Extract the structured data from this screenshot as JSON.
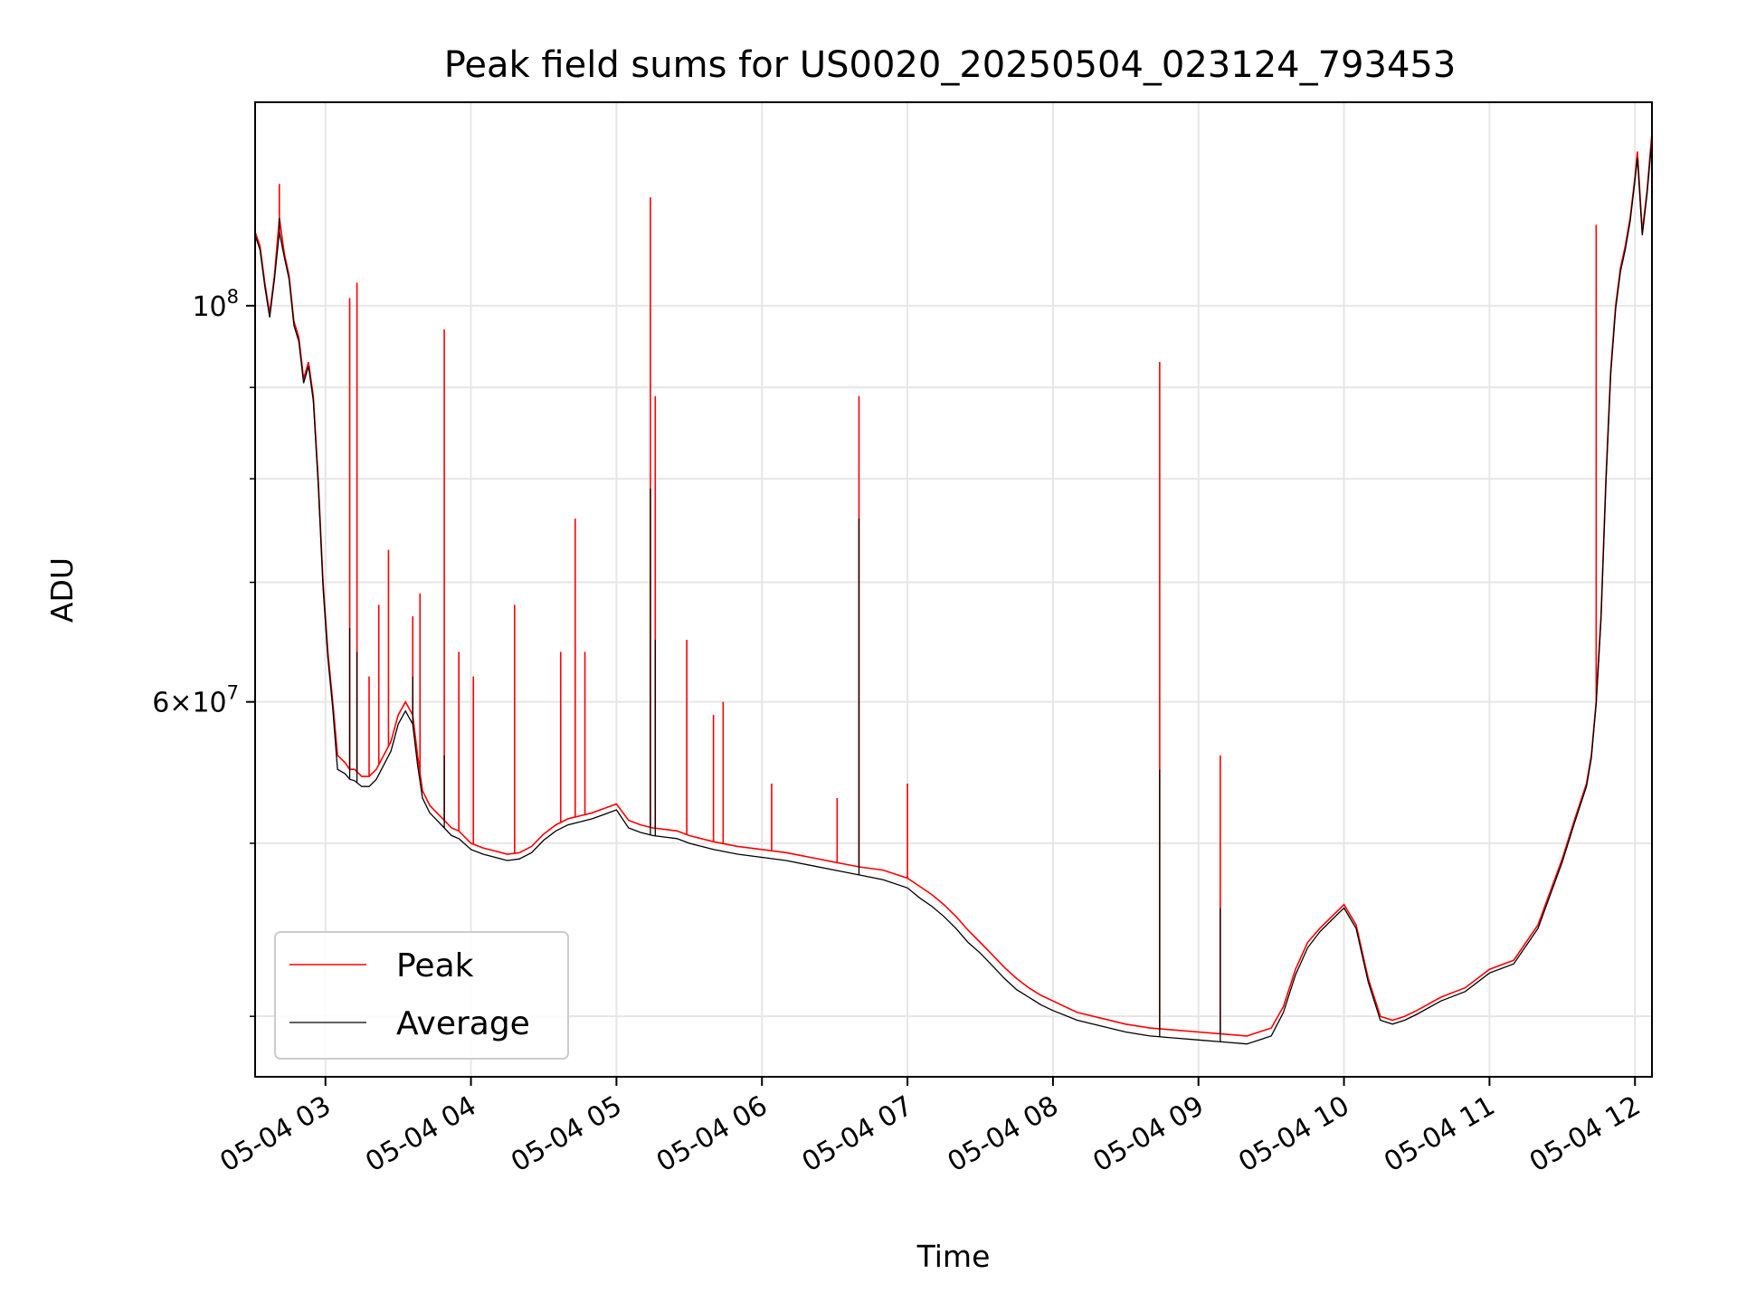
{
  "chart_data": {
    "type": "line",
    "title": "Peak field sums for US0020_20250504_023124_793453",
    "xlabel": "Time",
    "ylabel": "ADU",
    "y_scale": "log",
    "grid": true,
    "legend_placement": "lower-left",
    "xlim": [
      "2025-05-04 02:31",
      "2025-05-04 12:07"
    ],
    "ylim": [
      37000000,
      130000000
    ],
    "x_ticks": [
      "05-04 03",
      "05-04 04",
      "05-04 05",
      "05-04 06",
      "05-04 07",
      "05-04 08",
      "05-04 09",
      "05-04 10",
      "05-04 11",
      "05-04 12"
    ],
    "y_ticks": [
      "10^8",
      "6×10^7"
    ],
    "series": [
      {
        "name": "Peak",
        "color": "#ff0000",
        "x": [
          "02:31",
          "02:33",
          "02:35",
          "02:37",
          "02:39",
          "02:41",
          "02:43",
          "02:45",
          "02:47",
          "02:49",
          "02:51",
          "02:53",
          "02:55",
          "02:57",
          "02:59",
          "03:01",
          "03:03",
          "03:05",
          "03:08",
          "03:10",
          "03:12",
          "03:15",
          "03:18",
          "03:21",
          "03:24",
          "03:27",
          "03:30",
          "03:33",
          "03:36",
          "03:38",
          "03:40",
          "03:43",
          "03:46",
          "03:49",
          "03:52",
          "03:55",
          "04:00",
          "04:05",
          "04:10",
          "04:15",
          "04:20",
          "04:25",
          "04:30",
          "04:35",
          "04:40",
          "04:45",
          "04:50",
          "04:55",
          "05:00",
          "05:05",
          "05:10",
          "05:15",
          "05:20",
          "05:25",
          "05:30",
          "05:40",
          "05:50",
          "06:00",
          "06:10",
          "06:20",
          "06:30",
          "06:40",
          "06:50",
          "07:00",
          "07:05",
          "07:10",
          "07:15",
          "07:20",
          "07:25",
          "07:30",
          "07:35",
          "07:40",
          "07:45",
          "07:50",
          "07:55",
          "08:00",
          "08:10",
          "08:20",
          "08:30",
          "08:40",
          "08:50",
          "09:00",
          "09:10",
          "09:20",
          "09:30",
          "09:35",
          "09:40",
          "09:45",
          "09:50",
          "09:55",
          "10:00",
          "10:05",
          "10:10",
          "10:15",
          "10:20",
          "10:25",
          "10:30",
          "10:40",
          "10:50",
          "11:00",
          "11:10",
          "11:20",
          "11:30",
          "11:35",
          "11:40",
          "11:42",
          "11:44",
          "11:46",
          "11:48",
          "11:50",
          "11:52",
          "11:54",
          "11:56",
          "11:58",
          "12:00",
          "12:01",
          "12:03",
          "12:05",
          "12:07"
        ],
        "y": [
          110000000,
          108000000,
          103000000,
          99000000,
          104000000,
          112000000,
          107000000,
          104000000,
          98000000,
          96000000,
          91000000,
          93000000,
          89000000,
          80000000,
          70000000,
          64000000,
          60000000,
          56000000,
          55500000,
          55000000,
          55000000,
          54500000,
          54500000,
          55000000,
          56000000,
          57000000,
          59000000,
          60000000,
          59000000,
          56000000,
          53500000,
          52500000,
          52000000,
          51500000,
          51000000,
          50800000,
          50000000,
          49700000,
          49500000,
          49300000,
          49400000,
          49800000,
          50600000,
          51200000,
          51600000,
          51800000,
          52000000,
          52300000,
          52600000,
          51500000,
          51200000,
          51000000,
          50900000,
          50800000,
          50500000,
          50100000,
          49800000,
          49600000,
          49400000,
          49100000,
          48800000,
          48500000,
          48300000,
          47800000,
          47300000,
          46800000,
          46200000,
          45500000,
          44700000,
          44000000,
          43300000,
          42600000,
          42000000,
          41500000,
          41100000,
          40800000,
          40200000,
          39900000,
          39600000,
          39400000,
          39300000,
          39200000,
          39100000,
          39000000,
          39400000,
          40500000,
          42500000,
          44000000,
          44800000,
          45500000,
          46200000,
          45000000,
          42000000,
          40000000,
          39800000,
          40000000,
          40300000,
          41000000,
          41500000,
          42500000,
          43000000,
          45000000,
          49000000,
          51500000,
          54000000,
          56000000,
          60000000,
          67000000,
          80000000,
          92000000,
          100000000,
          105000000,
          108000000,
          112000000,
          118000000,
          122000000,
          110000000,
          116000000,
          125000000
        ],
        "spikes": [
          {
            "x": "02:41",
            "y": 117000000
          },
          {
            "x": "03:10",
            "y": 101000000
          },
          {
            "x": "03:13",
            "y": 103000000
          },
          {
            "x": "03:18",
            "y": 62000000
          },
          {
            "x": "03:22",
            "y": 68000000
          },
          {
            "x": "03:26",
            "y": 73000000
          },
          {
            "x": "03:36",
            "y": 67000000
          },
          {
            "x": "03:39",
            "y": 69000000
          },
          {
            "x": "03:49",
            "y": 97000000
          },
          {
            "x": "03:55",
            "y": 64000000
          },
          {
            "x": "04:01",
            "y": 62000000
          },
          {
            "x": "04:18",
            "y": 68000000
          },
          {
            "x": "04:37",
            "y": 64000000
          },
          {
            "x": "04:43",
            "y": 76000000
          },
          {
            "x": "04:47",
            "y": 64000000
          },
          {
            "x": "05:14",
            "y": 115000000
          },
          {
            "x": "05:16",
            "y": 89000000
          },
          {
            "x": "05:29",
            "y": 65000000
          },
          {
            "x": "05:40",
            "y": 59000000
          },
          {
            "x": "05:44",
            "y": 60000000
          },
          {
            "x": "06:04",
            "y": 54000000
          },
          {
            "x": "06:31",
            "y": 53000000
          },
          {
            "x": "06:40",
            "y": 89000000
          },
          {
            "x": "07:00",
            "y": 54000000
          },
          {
            "x": "08:44",
            "y": 93000000
          },
          {
            "x": "09:09",
            "y": 56000000
          },
          {
            "x": "11:44",
            "y": 111000000
          }
        ]
      },
      {
        "name": "Average",
        "color": "#000000",
        "x": [
          "02:31",
          "02:33",
          "02:35",
          "02:37",
          "02:39",
          "02:41",
          "02:43",
          "02:45",
          "02:47",
          "02:49",
          "02:51",
          "02:53",
          "02:55",
          "02:57",
          "02:59",
          "03:01",
          "03:03",
          "03:05",
          "03:08",
          "03:10",
          "03:12",
          "03:15",
          "03:18",
          "03:21",
          "03:24",
          "03:27",
          "03:30",
          "03:33",
          "03:36",
          "03:38",
          "03:40",
          "03:43",
          "03:46",
          "03:49",
          "03:52",
          "03:55",
          "04:00",
          "04:05",
          "04:10",
          "04:15",
          "04:20",
          "04:25",
          "04:30",
          "04:35",
          "04:40",
          "04:45",
          "04:50",
          "04:55",
          "05:00",
          "05:05",
          "05:10",
          "05:15",
          "05:20",
          "05:25",
          "05:30",
          "05:40",
          "05:50",
          "06:00",
          "06:10",
          "06:20",
          "06:30",
          "06:40",
          "06:50",
          "07:00",
          "07:05",
          "07:10",
          "07:15",
          "07:20",
          "07:25",
          "07:30",
          "07:35",
          "07:40",
          "07:45",
          "07:50",
          "07:55",
          "08:00",
          "08:10",
          "08:20",
          "08:30",
          "08:40",
          "08:50",
          "09:00",
          "09:10",
          "09:20",
          "09:30",
          "09:35",
          "09:40",
          "09:45",
          "09:50",
          "09:55",
          "10:00",
          "10:05",
          "10:10",
          "10:15",
          "10:20",
          "10:25",
          "10:30",
          "10:40",
          "10:50",
          "11:00",
          "11:10",
          "11:20",
          "11:30",
          "11:35",
          "11:40",
          "11:42",
          "11:44",
          "11:46",
          "11:48",
          "11:50",
          "11:52",
          "11:54",
          "11:56",
          "11:58",
          "12:00",
          "12:01",
          "12:03",
          "12:05",
          "12:07"
        ],
        "y": [
          109500000,
          107500000,
          102500000,
          98500000,
          103500000,
          110000000,
          106500000,
          103500000,
          97500000,
          95500000,
          90500000,
          92500000,
          88500000,
          79500000,
          69500000,
          63500000,
          59500000,
          55000000,
          54700000,
          54300000,
          54200000,
          53800000,
          53800000,
          54300000,
          55300000,
          56300000,
          58300000,
          59300000,
          58300000,
          55300000,
          53000000,
          52000000,
          51500000,
          51000000,
          50500000,
          50300000,
          49600000,
          49300000,
          49100000,
          48900000,
          49000000,
          49400000,
          50200000,
          50800000,
          51200000,
          51400000,
          51600000,
          51900000,
          52200000,
          51000000,
          50700000,
          50500000,
          50400000,
          50300000,
          50000000,
          49600000,
          49300000,
          49100000,
          48900000,
          48600000,
          48300000,
          48000000,
          47700000,
          47200000,
          46600000,
          46100000,
          45500000,
          44800000,
          44000000,
          43400000,
          42700000,
          42000000,
          41400000,
          41000000,
          40600000,
          40300000,
          39800000,
          39500000,
          39200000,
          39000000,
          38900000,
          38800000,
          38700000,
          38600000,
          39000000,
          40200000,
          42200000,
          43700000,
          44600000,
          45300000,
          46000000,
          44800000,
          41800000,
          39800000,
          39600000,
          39800000,
          40100000,
          40800000,
          41300000,
          42300000,
          42800000,
          44800000,
          48800000,
          51300000,
          53800000,
          55800000,
          59800000,
          66800000,
          79500000,
          91500000,
          99500000,
          104500000,
          107500000,
          111500000,
          117500000,
          121000000,
          109500000,
          115500000,
          124000000
        ],
        "spikes": [
          {
            "x": "02:41",
            "y": 112000000
          },
          {
            "x": "03:10",
            "y": 66000000
          },
          {
            "x": "03:13",
            "y": 64000000
          },
          {
            "x": "03:36",
            "y": 62000000
          },
          {
            "x": "03:49",
            "y": 56000000
          },
          {
            "x": "05:14",
            "y": 79000000
          },
          {
            "x": "05:16",
            "y": 65000000
          },
          {
            "x": "06:40",
            "y": 76000000
          },
          {
            "x": "08:44",
            "y": 55000000
          },
          {
            "x": "09:09",
            "y": 46000000
          }
        ]
      }
    ]
  }
}
